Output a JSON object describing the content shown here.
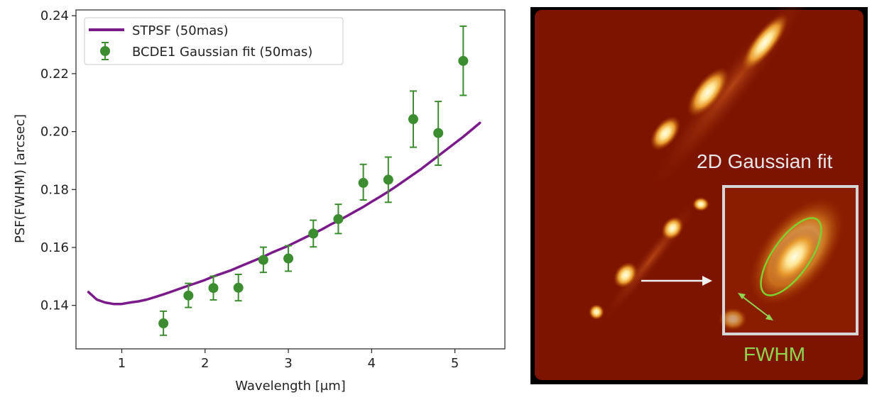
{
  "chart_data": {
    "type": "line",
    "xlabel": "Wavelength [μm]",
    "ylabel": "PSF(FWHM) [arcsec]",
    "xlim": [
      0.45,
      5.6
    ],
    "ylim": [
      0.125,
      0.242
    ],
    "xticks": [
      1,
      2,
      3,
      4,
      5
    ],
    "yticks": [
      0.14,
      0.16,
      0.18,
      0.2,
      0.22,
      0.24
    ],
    "ytick_labels": [
      "0.14",
      "0.16",
      "0.18",
      "0.20",
      "0.22",
      "0.24"
    ],
    "legend_position": "top-left",
    "grid": false,
    "series": [
      {
        "name": "STPSF (50mas)",
        "kind": "line",
        "color": "#7b1a8a",
        "x": [
          0.6,
          0.7,
          0.8,
          0.9,
          1.0,
          1.1,
          1.2,
          1.3,
          1.4,
          1.5,
          1.6,
          1.7,
          1.8,
          1.9,
          2.0,
          2.1,
          2.2,
          2.3,
          2.4,
          2.5,
          2.6,
          2.7,
          2.8,
          2.9,
          3.0,
          3.1,
          3.2,
          3.3,
          3.4,
          3.5,
          3.6,
          3.7,
          3.8,
          3.9,
          4.0,
          4.1,
          4.2,
          4.3,
          4.4,
          4.5,
          4.6,
          4.7,
          4.8,
          4.9,
          5.0,
          5.1,
          5.2,
          5.3
        ],
        "y": [
          0.1446,
          0.142,
          0.141,
          0.1405,
          0.1405,
          0.141,
          0.1414,
          0.142,
          0.1429,
          0.1438,
          0.1448,
          0.1458,
          0.1468,
          0.1478,
          0.1488,
          0.15,
          0.151,
          0.152,
          0.1532,
          0.1544,
          0.1556,
          0.1568,
          0.1582,
          0.1594,
          0.1606,
          0.162,
          0.1634,
          0.1648,
          0.1662,
          0.1678,
          0.1692,
          0.1708,
          0.1724,
          0.174,
          0.1758,
          0.1775,
          0.1793,
          0.1812,
          0.1832,
          0.1852,
          0.1872,
          0.1894,
          0.1916,
          0.1938,
          0.196,
          0.1982,
          0.2006,
          0.203
        ]
      },
      {
        "name": "BCDE1 Gaussian fit (50mas)",
        "kind": "errorbar",
        "color": "#3c8d2f",
        "x": [
          1.5,
          1.8,
          2.1,
          2.4,
          2.7,
          3.0,
          3.3,
          3.6,
          3.9,
          4.2,
          4.5,
          4.8,
          5.1
        ],
        "y": [
          0.1338,
          0.1434,
          0.146,
          0.1461,
          0.1557,
          0.1562,
          0.1648,
          0.1698,
          0.1823,
          0.1834,
          0.2043,
          0.1995,
          0.2244
        ],
        "yerr_low": [
          0.1297,
          0.1393,
          0.1419,
          0.1416,
          0.1514,
          0.1518,
          0.1602,
          0.1648,
          0.1764,
          0.1756,
          0.1946,
          0.1884,
          0.2125
        ],
        "yerr_high": [
          0.138,
          0.1476,
          0.1501,
          0.1507,
          0.1601,
          0.1606,
          0.1694,
          0.1749,
          0.1887,
          0.1912,
          0.214,
          0.2104,
          0.2364
        ]
      }
    ]
  },
  "image_panel": {
    "inset_title": "2D Gaussian fit",
    "fwhm_label": "FWHM",
    "background_color": "#7d1400",
    "inset_border_color": "#d6d6d6",
    "ellipse_color": "#7cd12f",
    "arrow_color": "#f0f0f0"
  }
}
